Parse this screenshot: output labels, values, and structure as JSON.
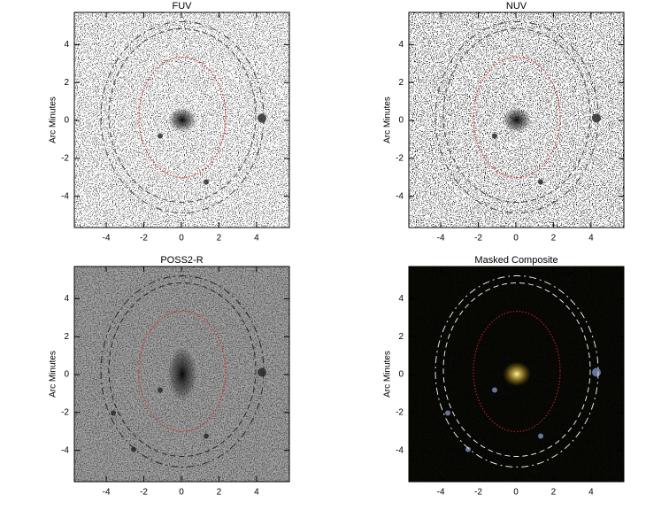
{
  "chart_data": [
    {
      "type": "image",
      "title": "FUV",
      "ylabel": "Arc Minutes",
      "xlim": [
        -5.7,
        5.75
      ],
      "ylim": [
        -5.65,
        5.7
      ],
      "xticks": [
        -4,
        -2,
        0,
        2,
        4
      ],
      "yticks": [
        -4,
        -2,
        0,
        2,
        4
      ]
    },
    {
      "type": "image",
      "title": "NUV",
      "ylabel": "Arc Minutes",
      "xlim": [
        -5.7,
        5.75
      ],
      "ylim": [
        -5.65,
        5.7
      ],
      "xticks": [
        -4,
        -2,
        0,
        2,
        4
      ],
      "yticks": [
        -4,
        -2,
        0,
        2,
        4
      ]
    },
    {
      "type": "image",
      "title": "POSS2-R",
      "ylabel": "Arc Minutes",
      "xlim": [
        -5.7,
        5.75
      ],
      "ylim": [
        -5.65,
        5.7
      ],
      "xticks": [
        -4,
        -2,
        0,
        2,
        4
      ],
      "yticks": [
        -4,
        -2,
        0,
        2,
        4
      ]
    },
    {
      "type": "image",
      "title": "Masked Composite",
      "ylabel": "Arc Minutes",
      "xlim": [
        -5.7,
        5.75
      ],
      "ylim": [
        -5.65,
        5.7
      ],
      "xticks": [
        -4,
        -2,
        0,
        2,
        4
      ],
      "yticks": [
        -4,
        -2,
        0,
        2,
        4
      ]
    }
  ]
}
